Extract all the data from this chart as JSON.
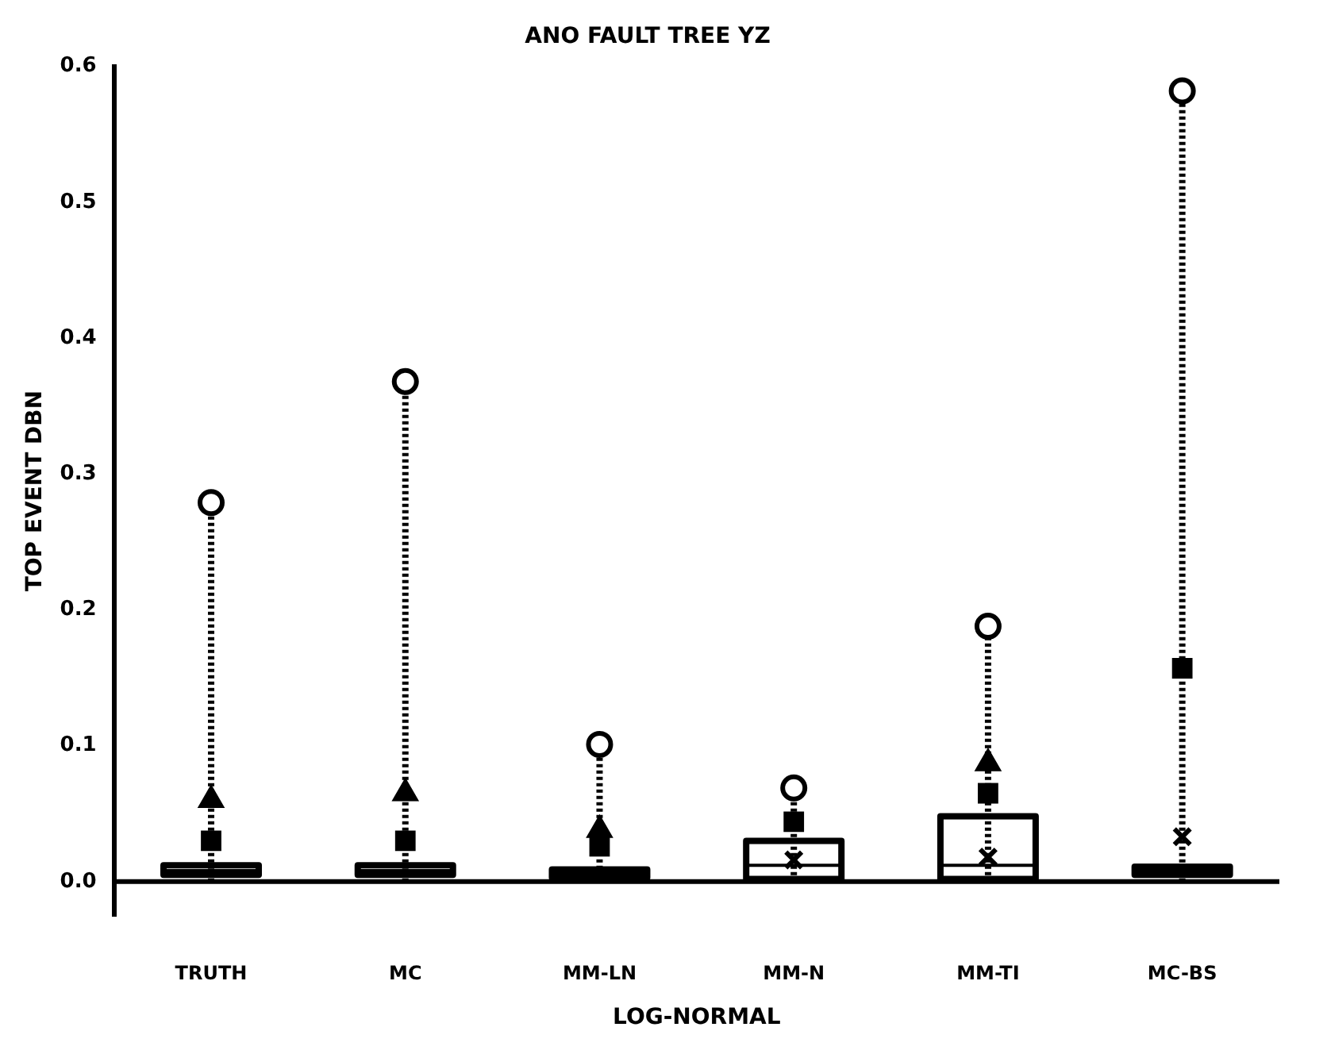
{
  "chart_data": {
    "type": "box",
    "title": "ANO FAULT TREE YZ",
    "xlabel": "LOG-NORMAL",
    "ylabel": "TOP EVENT DBN",
    "categories": [
      "TRUTH",
      "MC",
      "MM-LN",
      "MM-N",
      "MM-TI",
      "MC-BS"
    ],
    "boxes": [
      {
        "low": 0,
        "q1": 0.005,
        "median": 0.008,
        "q3": 0.012,
        "high": 0.279
      },
      {
        "low": 0,
        "q1": 0.005,
        "median": 0.008,
        "q3": 0.012,
        "high": 0.368
      },
      {
        "low": 0,
        "q1": 0.003,
        "median": 0.006,
        "q3": 0.009,
        "high": 0.101
      },
      {
        "low": 0,
        "q1": 0.002,
        "median": 0.012,
        "q3": 0.03,
        "high": 0.069
      },
      {
        "low": 0,
        "q1": 0.002,
        "median": 0.012,
        "q3": 0.048,
        "high": 0.188
      },
      {
        "low": 0,
        "q1": 0.005,
        "median": 0.008,
        "q3": 0.011,
        "high": 0.582
      }
    ],
    "series": [
      {
        "type": "scatter",
        "marker": "circle",
        "color": "#000000",
        "values": [
          0.279,
          0.368,
          0.101,
          0.069,
          0.188,
          0.582
        ]
      },
      {
        "type": "scatter",
        "marker": "triangle",
        "color": "#000000",
        "values": [
          0.06,
          0.065,
          0.038,
          null,
          0.087,
          null
        ]
      },
      {
        "type": "scatter",
        "marker": "square",
        "color": "#000000",
        "values": [
          0.03,
          0.03,
          0.026,
          0.044,
          0.065,
          0.157
        ]
      },
      {
        "type": "scatter",
        "marker": "cross",
        "color": "#000000",
        "values": [
          null,
          null,
          null,
          0.016,
          0.018,
          0.033
        ]
      }
    ],
    "ref_lines": [
      {
        "axis": "y",
        "value": 0
      }
    ],
    "ylim": [
      -0.025,
      0.6
    ],
    "yticks": [
      {
        "value": 0,
        "label": "0.0"
      },
      0.1,
      0.2,
      0.3,
      0.4,
      0.5,
      0.6
    ],
    "grid": false,
    "legend": false
  }
}
